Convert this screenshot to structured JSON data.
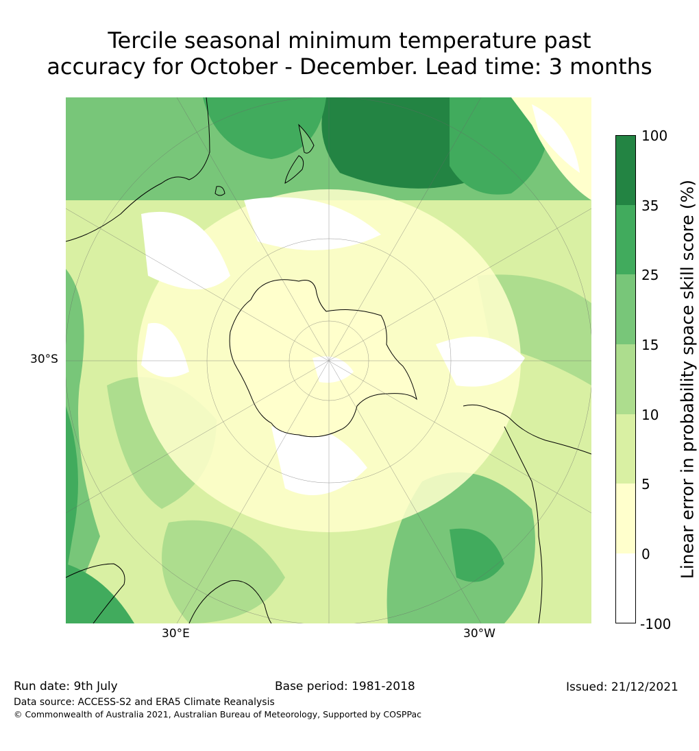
{
  "title_line1": "Tercile seasonal minimum temperature past",
  "title_line2": "accuracy for October - December. Lead time: 3 months",
  "map": {
    "projection": "south-polar-stereographic",
    "lat_label": "30°S",
    "lon_labels": [
      "30°E",
      "30°W"
    ],
    "field_image": "green-shaded skill map",
    "coastline_color": "#000000"
  },
  "colorbar": {
    "title": "Linear error in probability space skill score (%)",
    "ticks": [
      "100",
      "35",
      "25",
      "15",
      "10",
      "5",
      "0",
      "-100"
    ],
    "colors": [
      "#ffffff",
      "#ffffcc",
      "#d9f0a3",
      "#addd8e",
      "#78c679",
      "#41ab5d",
      "#238443"
    ]
  },
  "footer": {
    "run_date": "Run date: 9th July",
    "base_period": "Base period: 1981-2018",
    "issued": "Issued: 21/12/2021",
    "data_source": "Data source: ACCESS-S2 and ERA5 Climate Reanalysis",
    "copyright": "© Commonwealth of Australia 2021, Australian Bureau of Meteorology, Supported by COSPPac"
  }
}
